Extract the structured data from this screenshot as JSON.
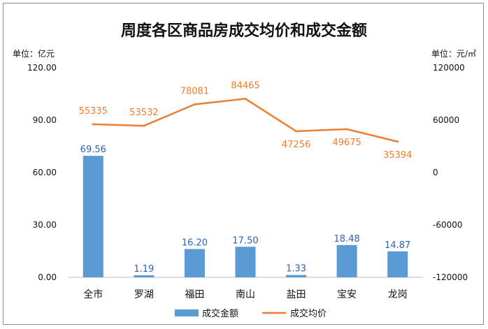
{
  "chart_data": {
    "type": "bar+line",
    "title": "周度各区商品房成交均价和成交金额",
    "left_unit": "单位：亿元",
    "right_unit": "单位：元/㎡",
    "categories": [
      "全市",
      "罗湖",
      "福田",
      "南山",
      "盐田",
      "宝安",
      "龙岗"
    ],
    "series": [
      {
        "name": "成交金额",
        "type": "bar",
        "axis": "left",
        "color": "#5b9bd5",
        "values": [
          69.56,
          1.19,
          16.2,
          17.5,
          1.33,
          18.48,
          14.87
        ],
        "labels": [
          "69.56",
          "1.19",
          "16.20",
          "17.50",
          "1.33",
          "18.48",
          "14.87"
        ]
      },
      {
        "name": "成交均价",
        "type": "line",
        "axis": "right",
        "color": "#ed7d31",
        "values": [
          55335,
          53532,
          78081,
          84465,
          47256,
          49675,
          35394
        ],
        "labels": [
          "55335",
          "53532",
          "78081",
          "84465",
          "47256",
          "49675",
          "35394"
        ]
      }
    ],
    "left_axis": {
      "min": 0,
      "max": 120,
      "ticks": [
        "0.00",
        "30.00",
        "60.00",
        "90.00",
        "120.00"
      ]
    },
    "right_axis": {
      "min": -120000,
      "max": 120000,
      "ticks": [
        "-120000",
        "-60000",
        "0",
        "60000",
        "120000"
      ]
    },
    "legend_position": "bottom",
    "grid": false
  }
}
